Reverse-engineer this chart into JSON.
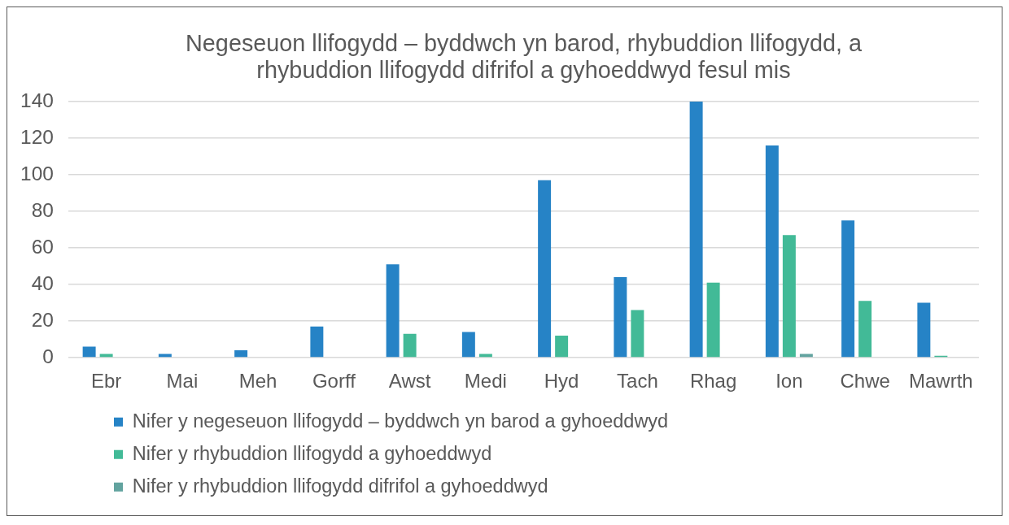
{
  "chart_data": {
    "type": "bar",
    "title": "Negeseuon llifogydd – byddwch yn barod, rhybuddion llifogydd, a rhybuddion llifogydd difrifol a gyhoeddwyd fesul mis",
    "categories": [
      "Ebr",
      "Mai",
      "Meh",
      "Gorff",
      "Awst",
      "Medi",
      "Hyd",
      "Tach",
      "Rhag",
      "Ion",
      "Chwe",
      "Mawrth"
    ],
    "series": [
      {
        "name": "Nifer y negeseuon llifogydd – byddwch yn barod a gyhoeddwyd",
        "color": "#2683c6",
        "values": [
          6,
          2,
          4,
          17,
          51,
          14,
          97,
          44,
          140,
          116,
          75,
          30
        ]
      },
      {
        "name": "Nifer y rhybuddion llifogydd a gyhoeddwyd",
        "color": "#42ba97",
        "values": [
          2,
          0,
          0,
          0,
          13,
          2,
          12,
          26,
          41,
          67,
          31,
          1
        ]
      },
      {
        "name": "Nifer y rhybuddion llifogydd difrifol a gyhoeddwyd",
        "color": "#62a39f",
        "values": [
          0,
          0,
          0,
          0,
          0,
          0,
          0,
          0,
          0,
          2,
          0,
          0
        ]
      }
    ],
    "ylim": [
      0,
      140
    ],
    "yticks": [
      0,
      20,
      40,
      60,
      80,
      100,
      120,
      140
    ],
    "grid": "y",
    "legend": "bottom"
  }
}
